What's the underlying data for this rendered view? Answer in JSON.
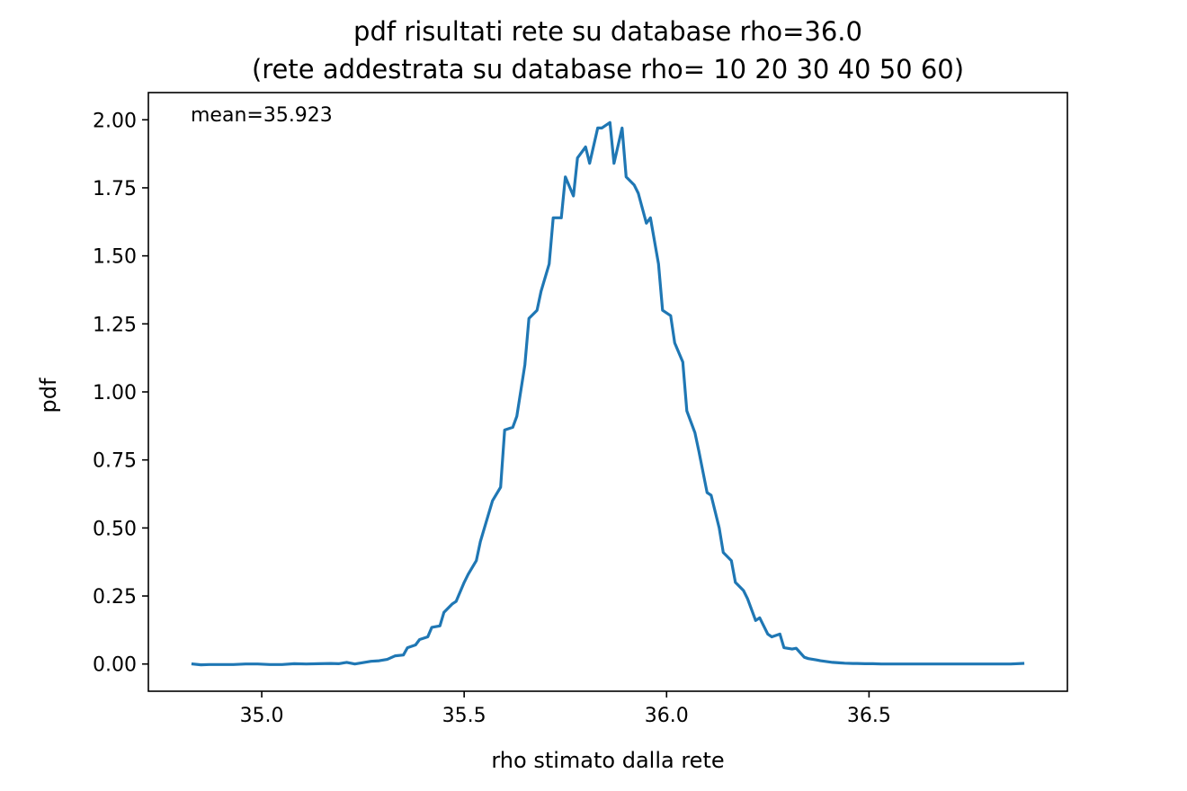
{
  "chart_data": {
    "type": "line",
    "title": "pdf risultati rete su database rho=36.0",
    "subtitle": "(rete addestrata su database rho= 10 20 30 40 50 60)",
    "xlabel": "rho stimato dalla rete",
    "ylabel": "pdf",
    "annotation": "mean=35.923",
    "xlim": [
      34.72,
      36.99
    ],
    "ylim": [
      -0.1,
      2.1
    ],
    "xticks": [
      35.0,
      35.5,
      36.0,
      36.5
    ],
    "xtick_labels": [
      "35.0",
      "35.5",
      "36.0",
      "36.5"
    ],
    "yticks": [
      0.0,
      0.25,
      0.5,
      0.75,
      1.0,
      1.25,
      1.5,
      1.75,
      2.0
    ],
    "ytick_labels": [
      "0.00",
      "0.25",
      "0.50",
      "0.75",
      "1.00",
      "1.25",
      "1.50",
      "1.75",
      "2.00"
    ],
    "grid": false,
    "legend": "none",
    "line_color": "#1f77b4",
    "series": [
      {
        "x": [
          34.83,
          34.85,
          34.87,
          34.9,
          34.93,
          34.96,
          34.99,
          35.02,
          35.05,
          35.08,
          35.11,
          35.14,
          35.17,
          35.19,
          35.21,
          35.23,
          35.25,
          35.27,
          35.29,
          35.31,
          35.33,
          35.35,
          35.36,
          35.38,
          35.39,
          35.41,
          35.42,
          35.44,
          35.45,
          35.47,
          35.48,
          35.5,
          35.51,
          35.53,
          35.54,
          35.56,
          35.57,
          35.59,
          35.6,
          35.62,
          35.63,
          35.65,
          35.66,
          35.68,
          35.69,
          35.71,
          35.72,
          35.74,
          35.75,
          35.77,
          35.78,
          35.8,
          35.81,
          35.83,
          35.84,
          35.86,
          35.87,
          35.89,
          35.9,
          35.92,
          35.93,
          35.95,
          35.96,
          35.98,
          35.99,
          36.01,
          36.02,
          36.04,
          36.05,
          36.07,
          36.08,
          36.1,
          36.11,
          36.13,
          36.14,
          36.16,
          36.17,
          36.19,
          36.2,
          36.22,
          36.23,
          36.25,
          36.26,
          36.28,
          36.29,
          36.31,
          36.32,
          36.34,
          36.35,
          36.37,
          36.38,
          36.4,
          36.41,
          36.43,
          36.44,
          36.46,
          36.47,
          36.49,
          36.51,
          36.53,
          36.55,
          36.57,
          36.59,
          36.61,
          36.63,
          36.65,
          36.67,
          36.7,
          36.73,
          36.76,
          36.79,
          36.82,
          36.85,
          36.88
        ],
        "y": [
          0.0,
          -0.003,
          -0.002,
          -0.002,
          -0.002,
          0.0,
          0.0,
          -0.002,
          -0.002,
          0.001,
          0.0,
          0.001,
          0.002,
          0.001,
          0.006,
          0.0,
          0.005,
          0.01,
          0.012,
          0.017,
          0.03,
          0.033,
          0.06,
          0.07,
          0.09,
          0.1,
          0.135,
          0.14,
          0.19,
          0.22,
          0.23,
          0.3,
          0.33,
          0.38,
          0.45,
          0.55,
          0.6,
          0.65,
          0.86,
          0.87,
          0.91,
          1.1,
          1.27,
          1.3,
          1.37,
          1.47,
          1.64,
          1.64,
          1.79,
          1.72,
          1.86,
          1.9,
          1.84,
          1.97,
          1.97,
          1.99,
          1.84,
          1.97,
          1.79,
          1.76,
          1.73,
          1.62,
          1.64,
          1.47,
          1.3,
          1.28,
          1.18,
          1.11,
          0.93,
          0.85,
          0.78,
          0.63,
          0.62,
          0.5,
          0.41,
          0.38,
          0.3,
          0.27,
          0.24,
          0.16,
          0.17,
          0.11,
          0.1,
          0.11,
          0.06,
          0.055,
          0.058,
          0.025,
          0.02,
          0.015,
          0.012,
          0.008,
          0.006,
          0.004,
          0.003,
          0.002,
          0.002,
          0.001,
          0.001,
          0.0,
          0.0,
          0.0,
          0.0,
          0.0,
          0.0,
          0.0,
          0.0,
          0.0,
          0.0,
          0.0,
          0.0,
          0.0,
          0.0,
          0.002
        ]
      }
    ]
  }
}
